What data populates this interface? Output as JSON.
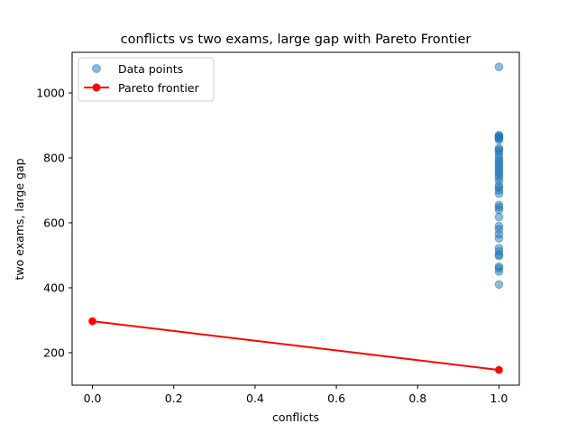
{
  "chart_data": {
    "type": "scatter",
    "title": "conflicts vs two exams, large gap with Pareto Frontier",
    "xlabel": "conflicts",
    "ylabel": "two exams, large gap",
    "xlim": [
      -0.05,
      1.05
    ],
    "ylim": [
      100,
      1125
    ],
    "xticks": [
      0.0,
      0.2,
      0.4,
      0.6,
      0.8,
      1.0
    ],
    "xtick_labels": [
      "0.0",
      "0.2",
      "0.4",
      "0.6",
      "0.8",
      "1.0"
    ],
    "yticks": [
      200,
      400,
      600,
      800,
      1000
    ],
    "ytick_labels": [
      "200",
      "400",
      "600",
      "800",
      "1000"
    ],
    "grid": false,
    "legend_position": "top-left",
    "series": [
      {
        "name": "Data points",
        "kind": "scatter",
        "color": "#1f77b4",
        "points": [
          [
            1,
            1080
          ],
          [
            1,
            870
          ],
          [
            1,
            867
          ],
          [
            1,
            865
          ],
          [
            1,
            862
          ],
          [
            1,
            860
          ],
          [
            1,
            855
          ],
          [
            1,
            830
          ],
          [
            1,
            825
          ],
          [
            1,
            820
          ],
          [
            1,
            810
          ],
          [
            1,
            800
          ],
          [
            1,
            792
          ],
          [
            1,
            785
          ],
          [
            1,
            778
          ],
          [
            1,
            770
          ],
          [
            1,
            762
          ],
          [
            1,
            755
          ],
          [
            1,
            748
          ],
          [
            1,
            740
          ],
          [
            1,
            730
          ],
          [
            1,
            715
          ],
          [
            1,
            708
          ],
          [
            1,
            700
          ],
          [
            1,
            690
          ],
          [
            1,
            655
          ],
          [
            1,
            648
          ],
          [
            1,
            640
          ],
          [
            1,
            618
          ],
          [
            1,
            590
          ],
          [
            1,
            580
          ],
          [
            1,
            565
          ],
          [
            1,
            552
          ],
          [
            1,
            522
          ],
          [
            1,
            512
          ],
          [
            1,
            502
          ],
          [
            1,
            498
          ],
          [
            1,
            465
          ],
          [
            1,
            460
          ],
          [
            1,
            450
          ],
          [
            1,
            410
          ]
        ]
      },
      {
        "name": "Pareto frontier",
        "kind": "line",
        "color": "#ff0000",
        "points": [
          [
            0,
            297
          ],
          [
            1,
            147
          ]
        ]
      }
    ]
  }
}
